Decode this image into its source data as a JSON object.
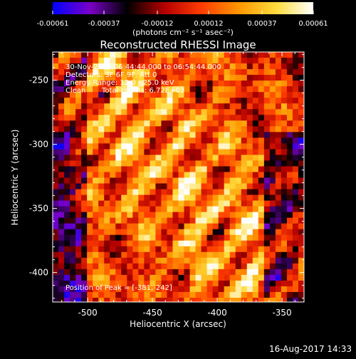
{
  "chart_data": {
    "type": "heatmap",
    "title": "Reconstructed RHESSI Image",
    "xlabel": "Heliocentric X (arcsec)",
    "ylabel": "Heliocentric Y (arcsec)",
    "xlim": [
      -527,
      -333
    ],
    "ylim": [
      -423,
      -228
    ],
    "x_ticks": [
      -500,
      -450,
      -400,
      -350
    ],
    "y_ticks": [
      -250,
      -300,
      -350,
      -400
    ],
    "colorbar": {
      "range": [
        -0.00061,
        0.00061
      ],
      "tick_values": [
        -0.00061,
        -0.00037,
        -0.00012,
        0.00012,
        0.00037,
        0.00061
      ],
      "tick_labels": [
        "-0.00061",
        "-0.00037",
        "-0.00012",
        "0.00012",
        "0.00037",
        "0.00061"
      ],
      "units": "(photons cm⁻² s⁻¹ asec⁻²)",
      "colors": [
        "#0000ff",
        "#7b00c8",
        "#000000",
        "#b40000",
        "#ff3c00",
        "#ff9600",
        "#ffdc3c",
        "#ffffff"
      ]
    },
    "annotations": {
      "time_range": "30-Nov-2014 06:44:44.000 to 06:54:44.000",
      "detectors": "Detectors: 3F 6F 9F, Att 0",
      "energy_range": "Energy Range: 12.0 - 25.0 keV",
      "clean_label": "Clean",
      "total_counts": "Total counts: 6.72E+03",
      "peak_position": "Position of Peak = [-381,-242]"
    },
    "peak": [
      -381,
      -242
    ],
    "footer_timestamp": "16-Aug-2017 14:33"
  }
}
